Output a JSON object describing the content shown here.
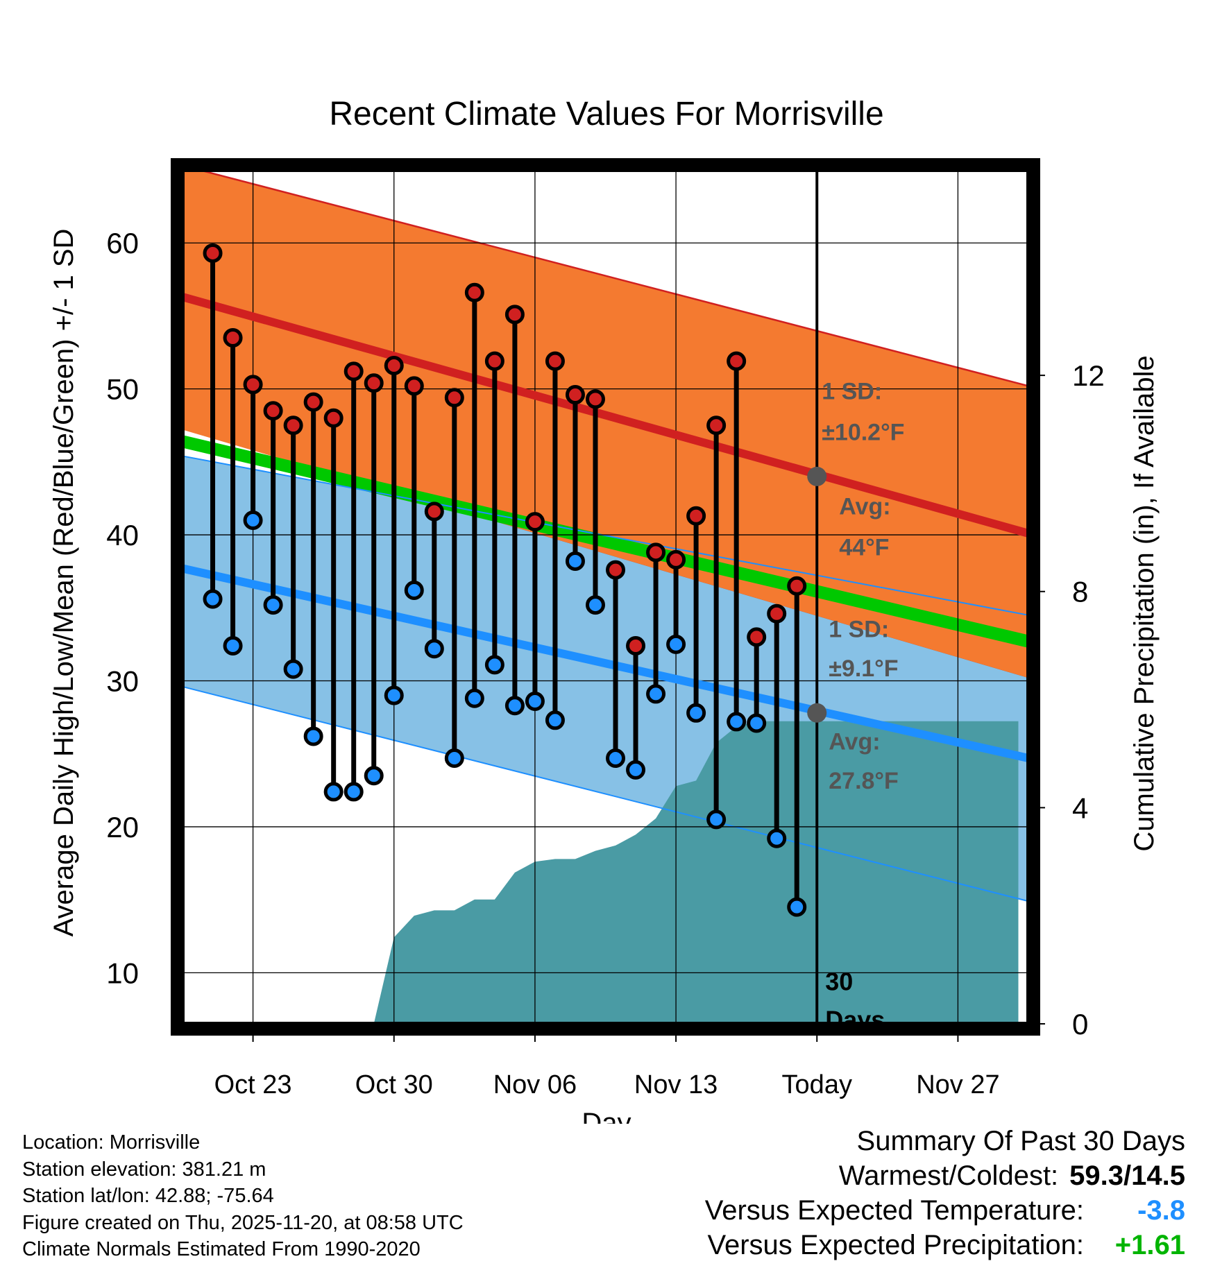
{
  "chart_data": {
    "type": "line",
    "title": "Recent Climate Values For Morrisville",
    "xlabel": "Day",
    "ylabel": "Average Daily High/Low/Mean (Red/Blue/Green) +/- 1 SD",
    "y2label": "Cumulative Precipitation (in), If Available",
    "ylim": [
      6.5,
      65
    ],
    "y2lim": [
      0,
      15.8
    ],
    "yticks": [
      10,
      20,
      30,
      40,
      50,
      60
    ],
    "y2ticks": [
      0,
      4,
      8,
      12
    ],
    "xlim": [
      -3.5,
      38.5
    ],
    "xticks": [
      {
        "day": 0,
        "label": "Oct 23"
      },
      {
        "day": 7,
        "label": "Oct 30"
      },
      {
        "day": 14,
        "label": "Nov 06"
      },
      {
        "day": 21,
        "label": "Nov 13"
      },
      {
        "day": 28,
        "label": "Today"
      },
      {
        "day": 35,
        "label": "Nov 27"
      }
    ],
    "grid": true,
    "normals": {
      "high_avg": {
        "start": 56.3,
        "end": 40.1
      },
      "high_sd_upper": {
        "start": 65.3,
        "end": 50.2
      },
      "high_sd_lower": {
        "start": 47.2,
        "end": 30.2
      },
      "low_avg": {
        "start": 37.7,
        "end": 24.7
      },
      "low_sd_upper": {
        "start": 45.4,
        "end": 34.5
      },
      "low_sd_lower": {
        "start": 29.6,
        "end": 14.9
      },
      "mean_avg": {
        "start": 46.4,
        "end": 32.7
      }
    },
    "series": [
      {
        "name": "Daily High",
        "days": [
          -2,
          -1,
          0,
          1,
          2,
          3,
          4,
          5,
          6,
          7,
          8,
          9,
          10,
          11,
          12,
          13,
          14,
          15,
          16,
          17,
          18,
          19,
          20,
          21,
          22,
          23,
          24,
          25,
          26,
          27
        ],
        "values": [
          59.3,
          53.5,
          50.3,
          48.5,
          47.5,
          49.1,
          48.0,
          51.2,
          50.4,
          51.6,
          50.2,
          41.6,
          49.4,
          56.6,
          51.9,
          55.1,
          40.9,
          51.9,
          49.6,
          49.3,
          37.6,
          32.4,
          38.8,
          38.3,
          41.3,
          47.5,
          51.9,
          33.0,
          34.6,
          36.5
        ]
      },
      {
        "name": "Daily Low",
        "days": [
          -2,
          -1,
          0,
          1,
          2,
          3,
          4,
          5,
          6,
          7,
          8,
          9,
          10,
          11,
          12,
          13,
          14,
          15,
          16,
          17,
          18,
          19,
          20,
          21,
          22,
          23,
          24,
          25,
          26,
          27
        ],
        "values": [
          35.6,
          32.4,
          41.0,
          35.2,
          30.8,
          26.2,
          22.4,
          22.4,
          23.5,
          29.0,
          36.2,
          32.2,
          24.7,
          28.8,
          31.1,
          28.3,
          28.6,
          27.3,
          38.2,
          35.2,
          24.7,
          23.9,
          29.1,
          32.5,
          27.8,
          20.5,
          27.2,
          27.1,
          19.2,
          14.5
        ]
      },
      {
        "name": "Cumulative Precipitation",
        "days": [
          6,
          7,
          8,
          9,
          10,
          11,
          12,
          13,
          14,
          15,
          16,
          17,
          18,
          19,
          20,
          21,
          22,
          23,
          24,
          25,
          38
        ],
        "values": [
          0,
          1.6,
          2.0,
          2.1,
          2.1,
          2.3,
          2.3,
          2.8,
          3.0,
          3.05,
          3.05,
          3.2,
          3.3,
          3.5,
          3.8,
          4.4,
          4.5,
          5.2,
          5.5,
          5.6,
          5.6
        ]
      }
    ],
    "annotations": {
      "high_sd_label": "1 SD:",
      "high_sd_value": "±10.2°F",
      "high_avg_label": "Avg:",
      "high_avg_value": "44°F",
      "high_avg_marker": 44.0,
      "low_sd_label": "1 SD:",
      "low_sd_value": "±9.1°F",
      "low_avg_label": "Avg:",
      "low_avg_value": "27.8°F",
      "low_avg_marker": 27.8,
      "days_count": "30",
      "days_word": "Days"
    },
    "colors": {
      "high_band": "#f47a30",
      "high_line": "#d02020",
      "low_band": "#87c1e6",
      "low_line": "#1e8fff",
      "mean_band": "#00c800",
      "mean_overlap": "#9b1010",
      "precip": "#4a9ba4",
      "high_dot": "#d02020",
      "low_dot": "#1e8fff",
      "annot": "#555555"
    }
  },
  "footer": {
    "location": "Location: Morrisville",
    "elevation": "Station elevation: 381.21 m",
    "latlon": "Station lat/lon: 42.88; -75.64",
    "created": "Figure created on Thu, 2025-11-20, at 08:58 UTC",
    "normals": "Climate Normals Estimated From 1990-2020"
  },
  "summary": {
    "heading": "Summary Of Past 30 Days",
    "warm_cold_label": "Warmest/Coldest:",
    "warm_cold_value": "59.3/14.5",
    "temp_label": "Versus Expected Temperature:",
    "temp_value": "-3.8",
    "temp_color": "#1e8fff",
    "precip_label": "Versus Expected Precipitation:",
    "precip_value": "+1.61",
    "precip_color": "#00b400"
  }
}
